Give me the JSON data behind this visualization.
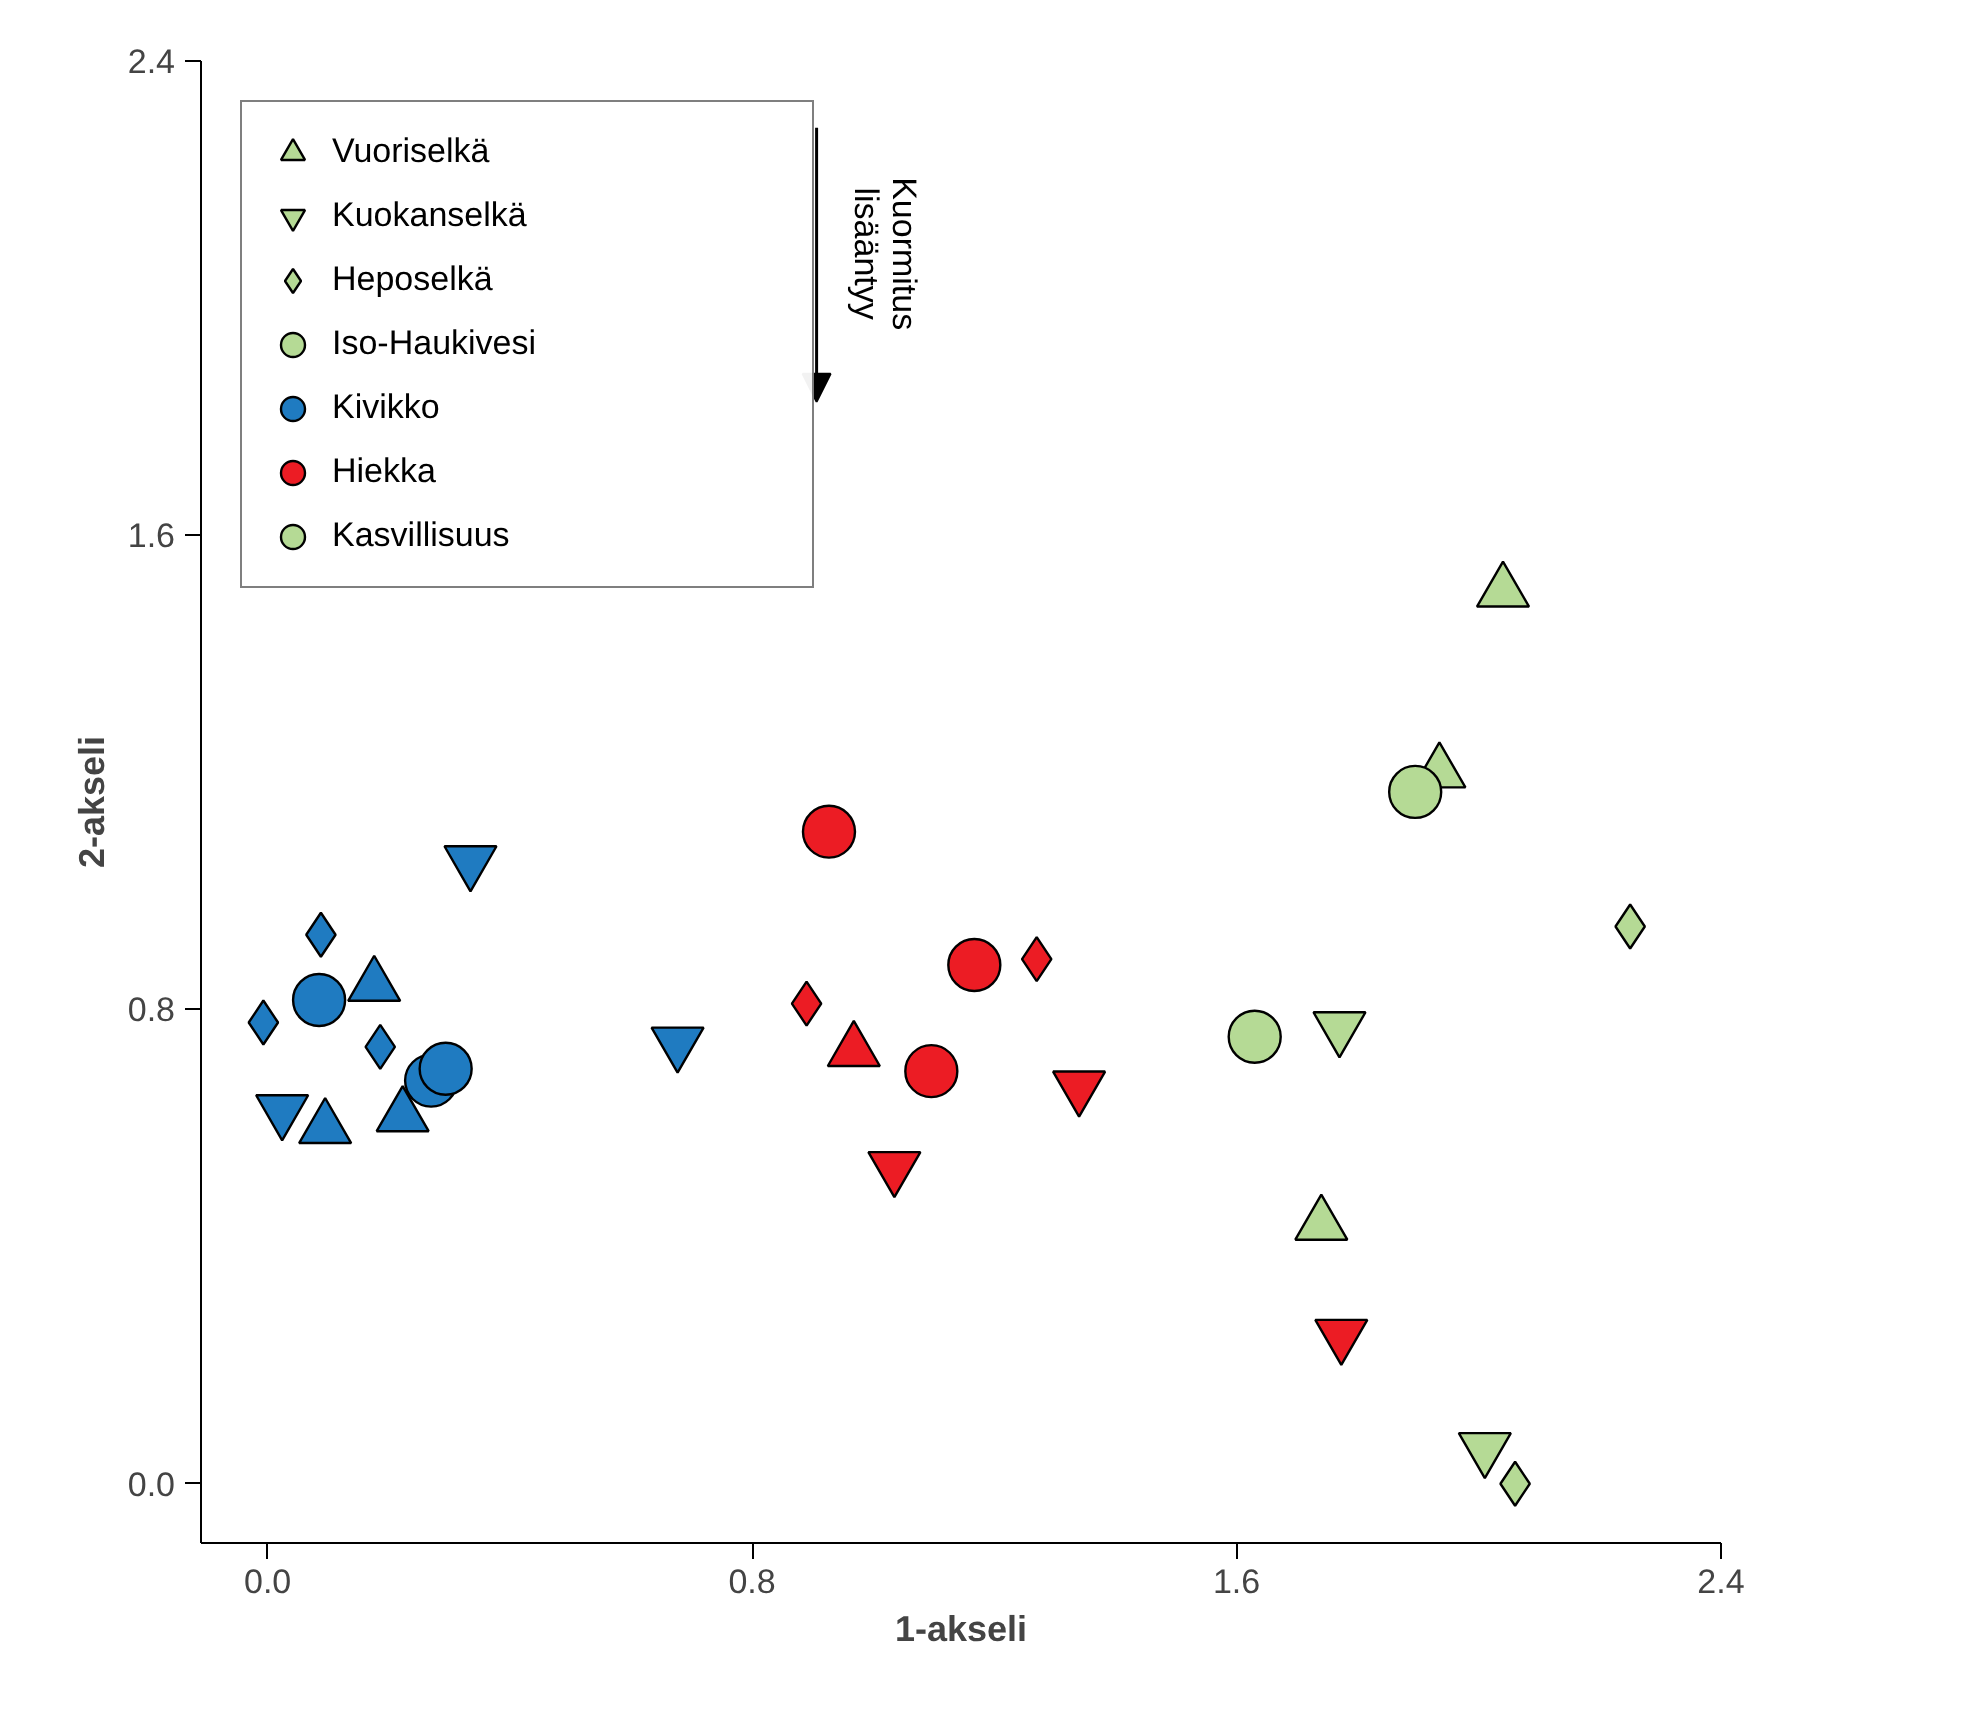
{
  "chart_data": {
    "type": "scatter",
    "xlabel": "1-akseli",
    "ylabel": "2-akseli",
    "xlim": [
      -0.11,
      2.4
    ],
    "ylim": [
      -0.1,
      2.4
    ],
    "xticks": [
      {
        "value": 0,
        "label": "0.0"
      },
      0.8,
      1.6,
      2.4
    ],
    "yticks": [
      {
        "value": 0,
        "label": "0.0"
      },
      0.8,
      1.6,
      2.4
    ],
    "grid": false,
    "legend": "top left",
    "annotations": [
      "Kuormitus\nlisääntyy"
    ],
    "series": [
      {
        "name": "Vuoriselkä",
        "marker": "triangle",
        "color": "#b5da95",
        "x": [
          2.04,
          1.935,
          1.74
        ],
        "values": [
          1.505,
          1.2,
          0.437
        ]
      },
      {
        "name": "Kuokanselkä",
        "color": "#b5da95",
        "x": [
          1.77,
          2.01
        ],
        "values": [
          0.77,
          0.06
        ]
      },
      {
        "name": "Heposelkä",
        "marker": "diamond",
        "color": "#b5da95",
        "x": [
          2.25,
          2.06
        ],
        "values": [
          0.94,
          0.0
        ]
      },
      {
        "name": "Iso-Haukivesi",
        "marker": "circle",
        "color": "#b5da95",
        "x": [
          1.895
        ],
        "values": [
          1.167
        ]
      },
      {
        "name": "Kivikko",
        "marker": "circle",
        "color": "#1f7bc1",
        "x": [
          0.085,
          0.27,
          0.294
        ],
        "values": [
          0.816,
          0.68,
          0.7
        ]
      },
      {
        "name": "Hiekka",
        "marker": "circle",
        "color": "#ec1c24",
        "x": [
          0.927,
          1.167,
          1.096
        ],
        "values": [
          1.1,
          0.875,
          0.696
        ]
      },
      {
        "name": "Kasvillisuus",
        "marker": "circle",
        "color": "#b5da95",
        "x": [
          1.63
        ],
        "values": [
          0.754
        ]
      },
      {
        "marker": "triangle",
        "color": "#1f7bc1",
        "x": [
          0.176,
          0.095,
          0.223
        ],
        "values": [
          0.84,
          0.6,
          0.62
        ]
      },
      {
        "color": "#1f7bc1",
        "x": [
          0.335,
          0.024,
          0.677
        ],
        "values": [
          1.05,
          0.63,
          0.744
        ]
      },
      {
        "marker": "diamond",
        "color": "#1f7bc1",
        "x": [
          0.088,
          -0.007,
          0.186
        ],
        "values": [
          0.926,
          0.778,
          0.737
        ]
      },
      {
        "marker": "triangle",
        "color": "#ec1c24",
        "x": [
          0.968
        ],
        "values": [
          0.73
        ]
      },
      {
        "color": "#ec1c24",
        "x": [
          1.035,
          1.34,
          1.773
        ],
        "values": [
          0.534,
          0.67,
          0.251
        ]
      },
      {
        "marker": "diamond",
        "color": "#ec1c24",
        "x": [
          0.89,
          1.27
        ],
        "values": [
          0.81,
          0.885
        ]
      }
    ]
  }
}
